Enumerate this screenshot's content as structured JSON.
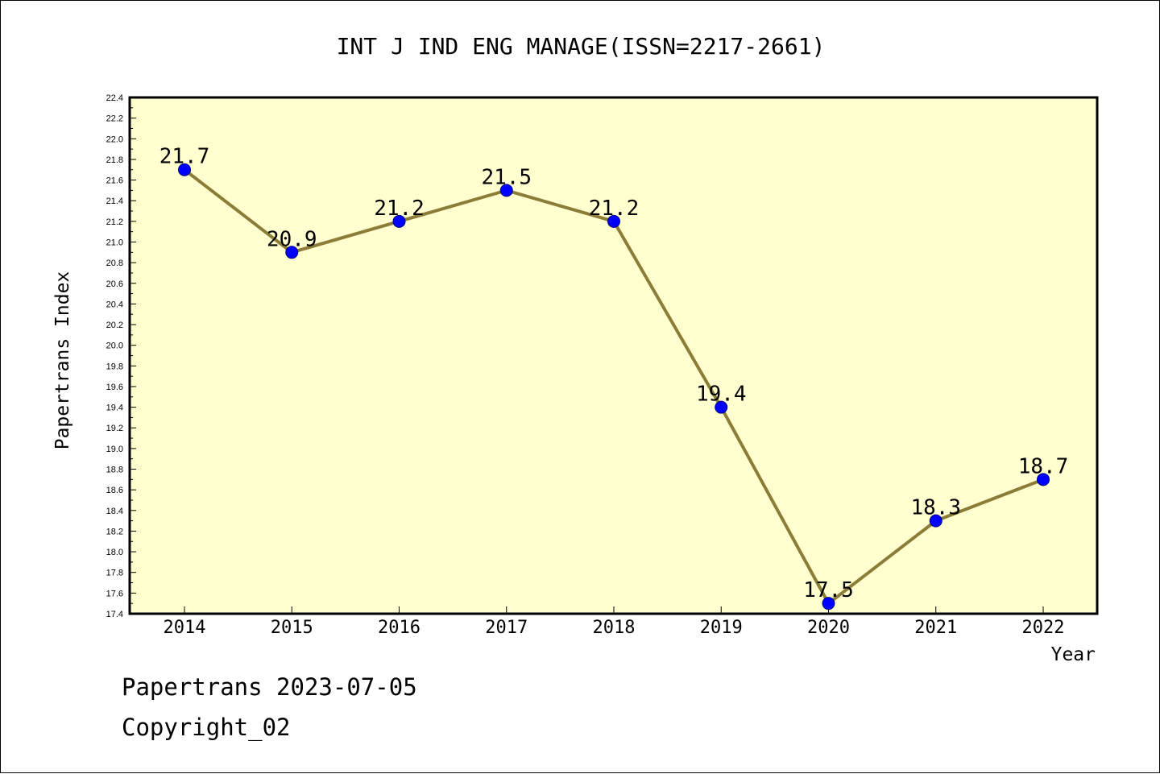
{
  "chart_data": {
    "type": "line",
    "title": "INT J IND ENG MANAGE(ISSN=2217-2661)",
    "xlabel": "Year",
    "ylabel": "Papertrans Index",
    "categories": [
      "2014",
      "2015",
      "2016",
      "2017",
      "2018",
      "2019",
      "2020",
      "2021",
      "2022"
    ],
    "series": [
      {
        "values": [
          21.7,
          20.9,
          21.2,
          21.5,
          21.2,
          19.4,
          17.5,
          18.3,
          18.7
        ]
      }
    ],
    "data_labels": [
      "21.7",
      "20.9",
      "21.2",
      "21.5",
      "21.2",
      "19.4",
      "17.5",
      "18.3",
      "18.7"
    ],
    "ylim": [
      17.4,
      22.4
    ],
    "ytick_step": 0.2,
    "grid": false,
    "legend": "none",
    "colors": {
      "plot_background": "#ffffd0",
      "line": "#8b7d38",
      "marker": "#0000ff",
      "marker_edge": "#000080",
      "axis": "#000000"
    }
  },
  "footer": {
    "line1": "Papertrans 2023-07-05",
    "line2": "Copyright_02"
  }
}
